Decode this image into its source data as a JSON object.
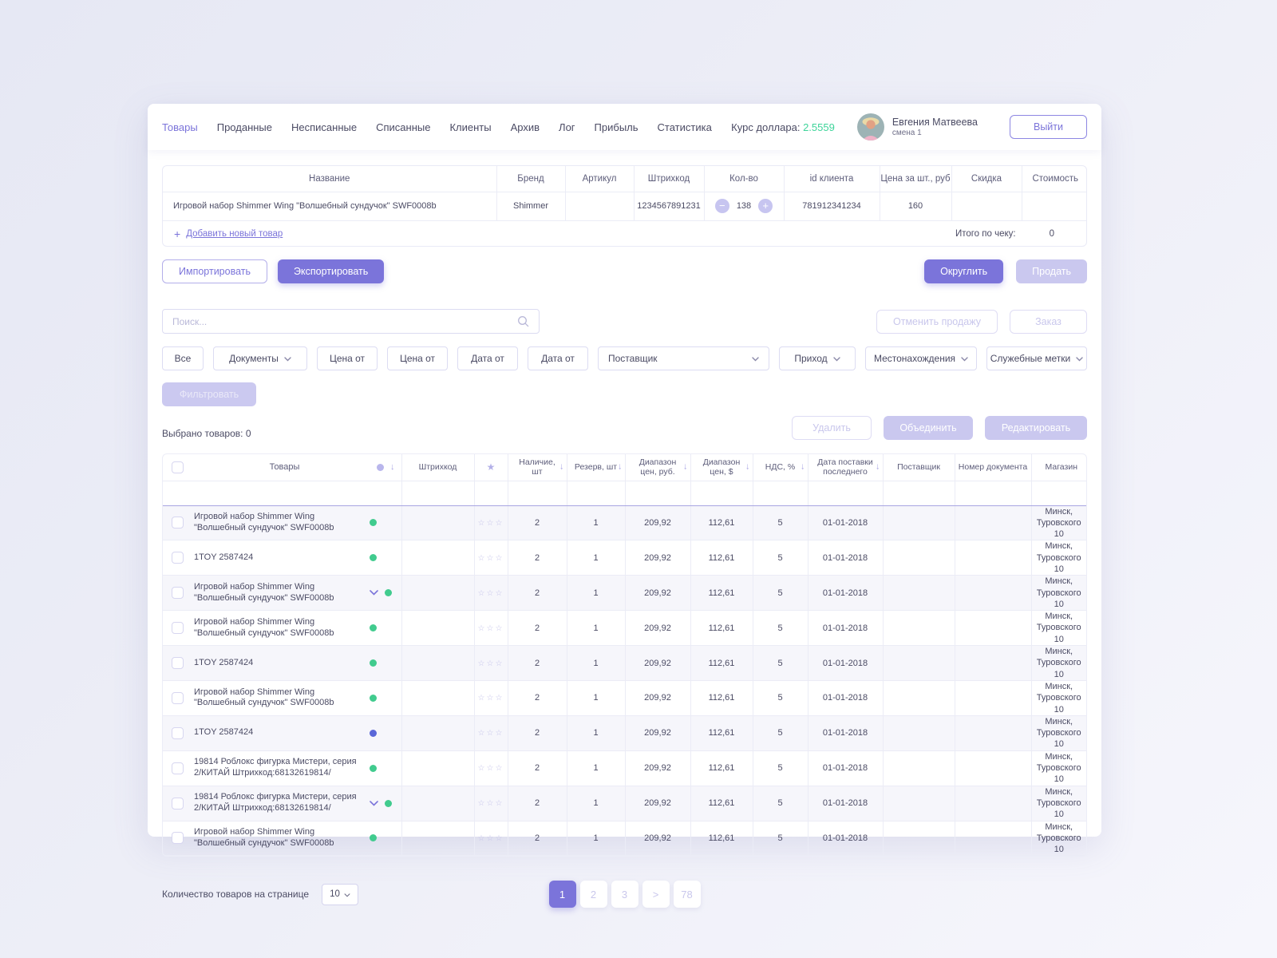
{
  "colors": {
    "accent": "#7b74da",
    "green": "#3ed49a",
    "blue": "#5a67d8",
    "disabled": "#cac8ef"
  },
  "header": {
    "tabs": [
      {
        "label": "Товары",
        "active": true
      },
      {
        "label": "Проданные",
        "active": false
      },
      {
        "label": "Несписанные",
        "active": false
      },
      {
        "label": "Списанные",
        "active": false
      },
      {
        "label": "Клиенты",
        "active": false
      },
      {
        "label": "Архив",
        "active": false
      },
      {
        "label": "Лог",
        "active": false
      },
      {
        "label": "Прибыль",
        "active": false
      },
      {
        "label": "Статистика",
        "active": false
      }
    ],
    "exchange_label": "Курс доллара:",
    "exchange_value": "2.5559",
    "user": {
      "name": "Евгения Матвеева",
      "shift": "смена 1"
    },
    "logout": "Выйти"
  },
  "cart": {
    "columns": [
      "Название",
      "Бренд",
      "Артикул",
      "Штрихкод",
      "Кол-во",
      "id клиента",
      "Цена за шт., руб",
      "Скидка",
      "Стоимость"
    ],
    "row": {
      "name": "Игровой набор Shimmer Wing \"Волшебный сундучок\" SWF0008b",
      "brand": "Shimmer",
      "article": "",
      "barcode": "1234567891231",
      "qty": "138",
      "client_id": "781912341234",
      "price": "160",
      "discount": "",
      "cost": ""
    },
    "add_item": "Добавить новый товар",
    "total_label": "Итого по чеку:",
    "total_value": "0"
  },
  "toolbar": {
    "import": "Импортировать",
    "export": "Экспортировать",
    "round": "Округлить",
    "sell": "Продать",
    "cancel_sale": "Отменить продажу",
    "order": "Заказ",
    "filter_apply": "Фильтровать",
    "delete": "Удалить",
    "merge": "Объединить",
    "edit": "Редактировать"
  },
  "search": {
    "placeholder": "Поиск..."
  },
  "filters": [
    {
      "label": "Все",
      "dropdown": false
    },
    {
      "label": "Документы",
      "dropdown": true
    },
    {
      "label": "Цена от",
      "dropdown": false
    },
    {
      "label": "Цена от",
      "dropdown": false
    },
    {
      "label": "Дата от",
      "dropdown": false
    },
    {
      "label": "Дата от",
      "dropdown": false
    },
    {
      "label": "Поставщик",
      "dropdown": true,
      "wide": true
    },
    {
      "label": "Приход",
      "dropdown": true
    },
    {
      "label": "Местонахождения",
      "dropdown": true
    },
    {
      "label": "Служебные метки",
      "dropdown": true
    }
  ],
  "selection": {
    "label": "Выбрано  товаров:",
    "count": "0"
  },
  "products": {
    "columns": [
      {
        "type": "checkbox",
        "label": ""
      },
      {
        "type": "name",
        "label": "Товары"
      },
      {
        "label": "Штрихкод"
      },
      {
        "type": "star",
        "label": ""
      },
      {
        "label": "Наличие, шт",
        "sort": true
      },
      {
        "label": "Резерв, шт",
        "sort": true
      },
      {
        "label": "Диапазон цен, руб.",
        "sort": true
      },
      {
        "label": "Диапазон цен, $",
        "sort": true
      },
      {
        "label": "НДС, %",
        "sort": true
      },
      {
        "label": "Дата поставки последнего",
        "sort": true
      },
      {
        "label": "Поставщик"
      },
      {
        "label": "Номер документа"
      },
      {
        "label": "Магазин"
      }
    ],
    "rows": [
      {
        "name": "Игровой набор Shimmer Wing \"Волшебный сундучок\" SWF0008b",
        "expand": false,
        "dot": "green",
        "barcode": "",
        "stock": "2",
        "reserve": "1",
        "range_rub": "209,92",
        "range_usd": "112,61",
        "vat": "5",
        "date": "01-01-2018",
        "supplier": "",
        "doc_number": "",
        "store": "Минск, Туровского 10"
      },
      {
        "name": "1TOY 2587424",
        "expand": false,
        "dot": "green",
        "barcode": "",
        "stock": "2",
        "reserve": "1",
        "range_rub": "209,92",
        "range_usd": "112,61",
        "vat": "5",
        "date": "01-01-2018",
        "supplier": "",
        "doc_number": "",
        "store": "Минск, Туровского 10"
      },
      {
        "name": "Игровой набор Shimmer Wing \"Волшебный сундучок\" SWF0008b",
        "expand": true,
        "dot": "green",
        "barcode": "",
        "stock": "2",
        "reserve": "1",
        "range_rub": "209,92",
        "range_usd": "112,61",
        "vat": "5",
        "date": "01-01-2018",
        "supplier": "",
        "doc_number": "",
        "store": "Минск, Туровского 10"
      },
      {
        "name": "Игровой набор Shimmer Wing \"Волшебный сундучок\" SWF0008b",
        "expand": false,
        "dot": "green",
        "barcode": "",
        "stock": "2",
        "reserve": "1",
        "range_rub": "209,92",
        "range_usd": "112,61",
        "vat": "5",
        "date": "01-01-2018",
        "supplier": "",
        "doc_number": "",
        "store": "Минск, Туровского 10"
      },
      {
        "name": "1TOY 2587424",
        "expand": false,
        "dot": "green",
        "barcode": "",
        "stock": "2",
        "reserve": "1",
        "range_rub": "209,92",
        "range_usd": "112,61",
        "vat": "5",
        "date": "01-01-2018",
        "supplier": "",
        "doc_number": "",
        "store": "Минск, Туровского 10"
      },
      {
        "name": "Игровой набор Shimmer Wing \"Волшебный сундучок\" SWF0008b",
        "expand": false,
        "dot": "green",
        "barcode": "",
        "stock": "2",
        "reserve": "1",
        "range_rub": "209,92",
        "range_usd": "112,61",
        "vat": "5",
        "date": "01-01-2018",
        "supplier": "",
        "doc_number": "",
        "store": "Минск, Туровского 10"
      },
      {
        "name": "1TOY 2587424",
        "expand": false,
        "dot": "blue",
        "barcode": "",
        "stock": "2",
        "reserve": "1",
        "range_rub": "209,92",
        "range_usd": "112,61",
        "vat": "5",
        "date": "01-01-2018",
        "supplier": "",
        "doc_number": "",
        "store": "Минск, Туровского 10"
      },
      {
        "name": "19814 Роблокс фигурка Мистери, серия 2/КИТАЙ Штрихкод:68132619814/",
        "expand": false,
        "dot": "green",
        "barcode": "",
        "stock": "2",
        "reserve": "1",
        "range_rub": "209,92",
        "range_usd": "112,61",
        "vat": "5",
        "date": "01-01-2018",
        "supplier": "",
        "doc_number": "",
        "store": "Минск, Туровского 10"
      },
      {
        "name": "19814 Роблокс фигурка Мистери, серия 2/КИТАЙ Штрихкод:68132619814/",
        "expand": true,
        "dot": "green",
        "barcode": "",
        "stock": "2",
        "reserve": "1",
        "range_rub": "209,92",
        "range_usd": "112,61",
        "vat": "5",
        "date": "01-01-2018",
        "supplier": "",
        "doc_number": "",
        "store": "Минск, Туровского 10"
      },
      {
        "name": "Игровой набор Shimmer Wing \"Волшебный сундучок\" SWF0008b",
        "expand": false,
        "dot": "green",
        "barcode": "",
        "stock": "2",
        "reserve": "1",
        "range_rub": "209,92",
        "range_usd": "112,61",
        "vat": "5",
        "date": "01-01-2018",
        "supplier": "",
        "doc_number": "",
        "store": "Минск, Туровского 10"
      }
    ]
  },
  "pagination": {
    "per_page_label": "Количество товаров на странице",
    "per_page": "10",
    "pages": [
      "1",
      "2",
      "3",
      ">",
      "78"
    ],
    "active": "1"
  }
}
